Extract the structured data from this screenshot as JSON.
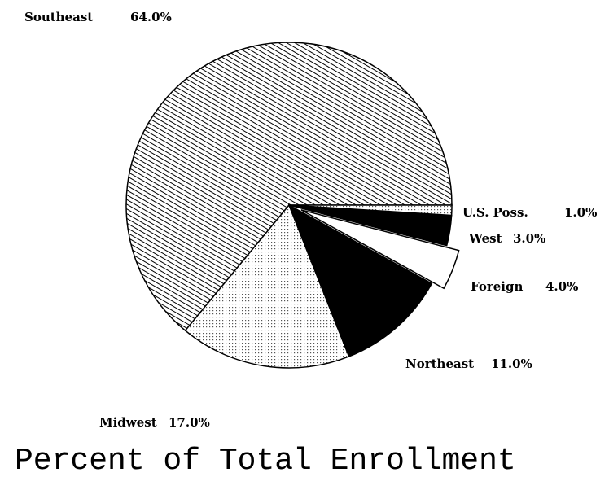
{
  "chart_data": {
    "type": "pie",
    "title": "Percent of Total Enrollment",
    "categories": [
      "Southeast",
      "Midwest",
      "Northeast",
      "Foreign",
      "West",
      "U.S. Poss."
    ],
    "values": [
      64,
      17,
      11,
      4,
      3,
      1
    ],
    "value_labels": [
      "64.0%",
      "17.0%",
      "11.0%",
      "4.0%",
      "3.0%",
      "1.0%"
    ]
  }
}
